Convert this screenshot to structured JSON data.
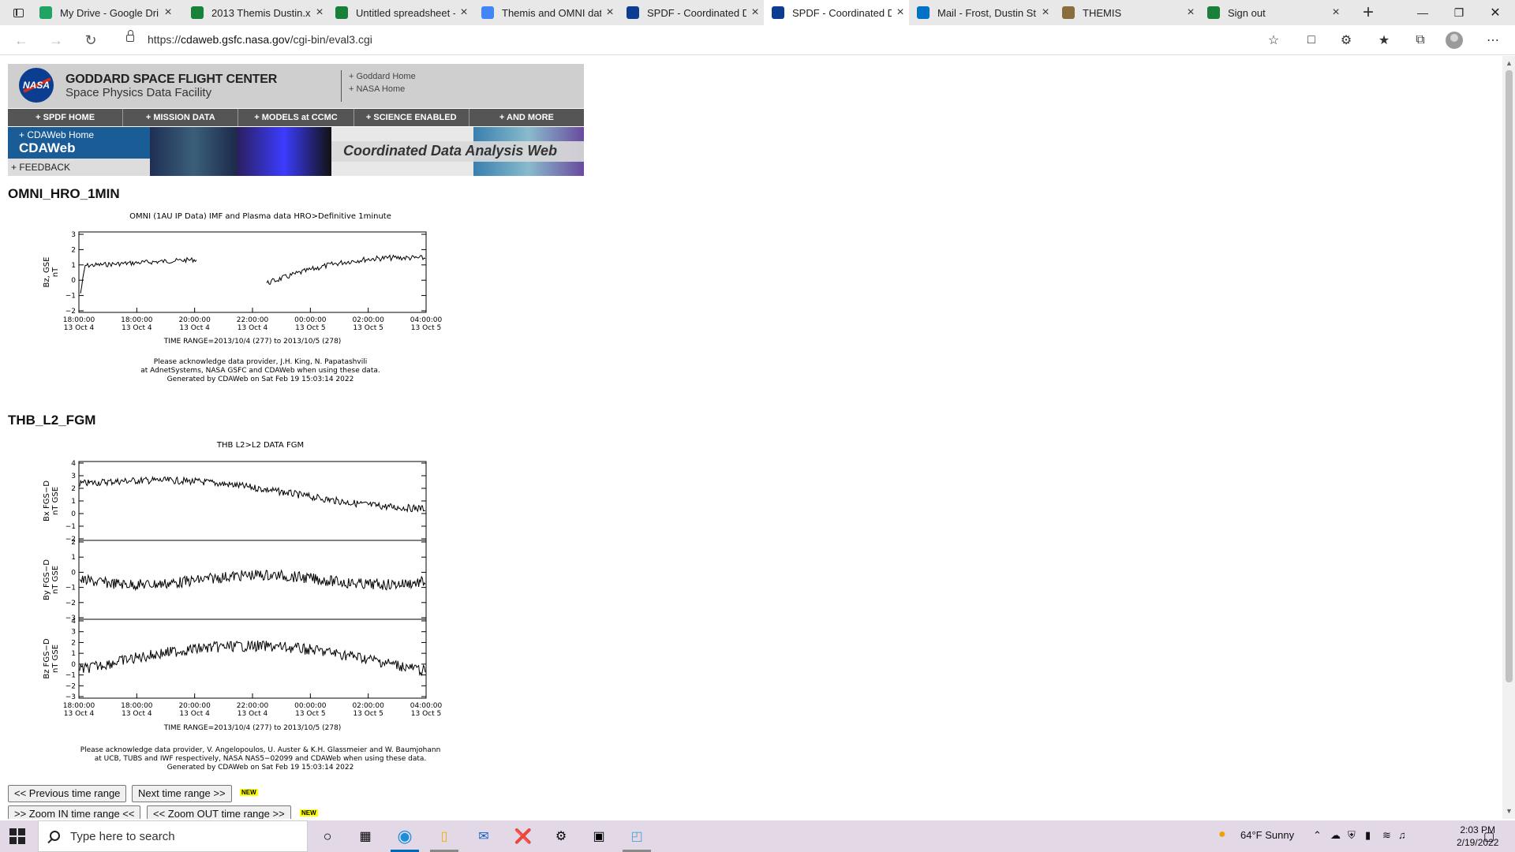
{
  "browser": {
    "tabs": [
      {
        "title": "My Drive - Google Dri",
        "favicon": "google-drive-icon",
        "color": "#1fa463",
        "active": false
      },
      {
        "title": "2013 Themis Dustin.xl",
        "favicon": "sheets-icon",
        "color": "#188038",
        "active": false
      },
      {
        "title": "Untitled spreadsheet -",
        "favicon": "sheets-icon",
        "color": "#188038",
        "active": false
      },
      {
        "title": "Themis and OMNI dat",
        "favicon": "docs-icon",
        "color": "#4285f4",
        "active": false
      },
      {
        "title": "SPDF - Coordinated D",
        "favicon": "nasa-icon",
        "color": "#0b3d91",
        "active": false
      },
      {
        "title": "SPDF - Coordinated D",
        "favicon": "nasa-icon",
        "color": "#0b3d91",
        "active": true
      },
      {
        "title": "Mail - Frost, Dustin St",
        "favicon": "outlook-icon",
        "color": "#0072c6",
        "active": false
      },
      {
        "title": "THEMIS",
        "favicon": "themis-icon",
        "color": "#8a6d3b",
        "active": false
      },
      {
        "title": "Sign out",
        "favicon": "sheets-icon",
        "color": "#188038",
        "active": false
      }
    ],
    "url_prefix": "https://",
    "url_domain": "cdaweb.gsfc.nasa.gov",
    "url_path": "/cgi-bin/eval3.cgi"
  },
  "header": {
    "logo_text": "NASA",
    "title": "GODDARD SPACE FLIGHT CENTER",
    "subtitle": "Space Physics Data Facility",
    "links": [
      "+ Goddard Home",
      "+ NASA Home"
    ]
  },
  "nav": [
    "+ SPDF HOME",
    "+ MISSION DATA",
    "+ MODELS at CCMC",
    "+ SCIENCE ENABLED",
    "+ AND MORE"
  ],
  "cdaweb": {
    "home_link": "+ CDAWeb Home",
    "title": "CDAWeb",
    "feedback": "+ FEEDBACK",
    "banner_text": "Coordinated Data Analysis Web"
  },
  "omni": {
    "dataset": "OMNI_HRO_1MIN",
    "plot_title": "OMNI (1AU IP Data)  IMF and Plasma data  HRO>Definitive 1minute",
    "ylabel": [
      "Bz, GSE",
      "nT"
    ],
    "yticks": [
      "3",
      "2",
      "1",
      "0",
      "−1",
      "−2"
    ],
    "time_range": "TIME RANGE=2013/10/4 (277) to 2013/10/5 (278)",
    "ack": [
      "Please acknowledge data provider, J.H. King, N. Papatashvili",
      "at AdnetSystems, NASA GSFC and CDAWeb when using these data.",
      "Generated by CDAWeb on Sat Feb 19 15:03:14 2022"
    ]
  },
  "thb": {
    "dataset": "THB_L2_FGM",
    "plot_title": "THB  L2>L2 DATA  FGM",
    "panels": [
      {
        "label": [
          "Bx FGS−D",
          "nT GSE"
        ],
        "yticks": [
          "4",
          "3",
          "2",
          "1",
          "0",
          "−1",
          "−2"
        ]
      },
      {
        "label": [
          "By FGS−D",
          "nT GSE"
        ],
        "yticks": [
          "2",
          "1",
          "0",
          "−1",
          "−2",
          "−3"
        ]
      },
      {
        "label": [
          "Bz FGS−D",
          "nT GSE"
        ],
        "yticks": [
          "4",
          "3",
          "2",
          "1",
          "0",
          "−1",
          "−2",
          "−3"
        ]
      }
    ],
    "time_range": "TIME RANGE=2013/10/4 (277) to 2013/10/5 (278)",
    "ack": [
      "Please acknowledge data provider, V. Angelopoulos, U. Auster & K.H. Glassmeier and W. Baumjohann",
      "at UCB, TUBS and IWF respectively, NASA NAS5−02099 and CDAWeb when using these data.",
      "Generated by CDAWeb on Sat Feb 19 15:03:14 2022"
    ]
  },
  "xticks": [
    {
      "time": "18:00:00",
      "date": "13 Oct  4"
    },
    {
      "time": "18:00:00",
      "date": "13 Oct  4"
    },
    {
      "time": "20:00:00",
      "date": "13 Oct  4"
    },
    {
      "time": "22:00:00",
      "date": "13 Oct  4"
    },
    {
      "time": "00:00:00",
      "date": "13 Oct  5"
    },
    {
      "time": "02:00:00",
      "date": "13 Oct  5"
    },
    {
      "time": "04:00:00",
      "date": "13 Oct  5"
    }
  ],
  "buttons": {
    "prev": "<< Previous time range",
    "next": "Next time range >>",
    "zoom_in": ">> Zoom IN time range <<",
    "zoom_out": "<< Zoom OUT time range >>",
    "new_badge": "NEW"
  },
  "taskbar": {
    "search_placeholder": "Type here to search",
    "weather": "64°F  Sunny",
    "time": "2:03 PM",
    "date": "2/19/2022"
  }
}
